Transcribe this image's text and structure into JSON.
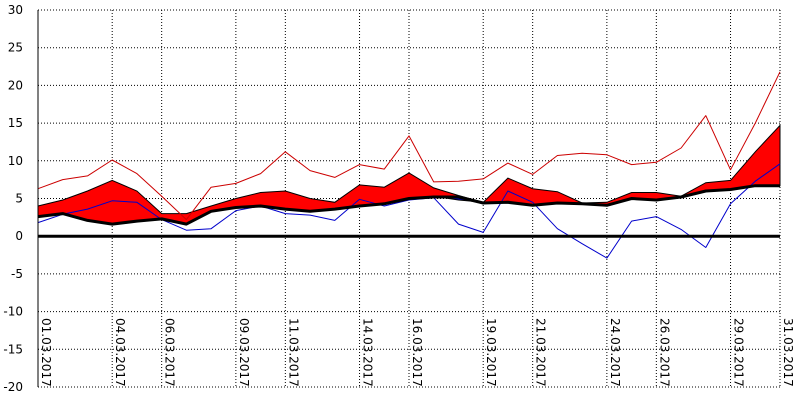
{
  "chart_data": {
    "type": "area",
    "grid": true,
    "ylim": [
      -20,
      30
    ],
    "yticks": [
      -20,
      -15,
      -10,
      -5,
      0,
      5,
      10,
      15,
      20,
      25,
      30
    ],
    "ytick_labels": [
      "-20",
      "-15",
      "-10",
      "-5",
      "0",
      "5",
      "10",
      "15",
      "20",
      "25",
      "30"
    ],
    "x_tick_days": [
      1,
      4,
      6,
      9,
      11,
      14,
      16,
      19,
      21,
      24,
      26,
      29,
      31
    ],
    "x_tick_labels": [
      "01.03.2017",
      "04.03.2017",
      "06.03.2017",
      "09.03.2017",
      "11.03.2017",
      "14.03.2017",
      "16.03.2017",
      "19.03.2017",
      "21.03.2017",
      "24.03.2017",
      "26.03.2017",
      "29.03.2017",
      "31.03.2017"
    ],
    "x_days": [
      1,
      2,
      3,
      4,
      5,
      6,
      7,
      8,
      9,
      10,
      11,
      12,
      13,
      14,
      15,
      16,
      17,
      18,
      19,
      20,
      21,
      22,
      23,
      24,
      25,
      26,
      27,
      28,
      29,
      30,
      31
    ],
    "series": [
      {
        "values": [
          6.3,
          7.5,
          8.0,
          10.1,
          8.3,
          5.3,
          2.2,
          6.5,
          7.0,
          8.3,
          11.2,
          8.7,
          7.8,
          9.5,
          8.9,
          13.3,
          7.2,
          7.3,
          7.6,
          9.7,
          8.2,
          10.7,
          11.0,
          10.8,
          9.5,
          9.8,
          11.7,
          16.0,
          8.8,
          15.0,
          21.8
        ],
        "color": "#cc0000",
        "style": "line"
      },
      {
        "values": [
          4.0,
          4.8,
          6.0,
          7.4,
          6.0,
          3.0,
          3.0,
          4.0,
          5.0,
          5.8,
          6.0,
          5.0,
          4.5,
          6.8,
          6.5,
          8.4,
          6.4,
          5.4,
          4.5,
          7.7,
          6.3,
          5.9,
          4.4,
          4.5,
          5.8,
          5.8,
          5.3,
          7.1,
          7.4,
          11.2,
          14.7
        ],
        "color": "#ff0000",
        "style": "upper-band"
      },
      {
        "values": [
          2.6,
          3.0,
          2.1,
          1.6,
          2.0,
          2.3,
          1.6,
          3.3,
          3.8,
          4.0,
          3.6,
          3.3,
          3.6,
          4.0,
          4.3,
          5.0,
          5.2,
          5.2,
          4.4,
          4.5,
          4.1,
          4.4,
          4.3,
          4.1,
          5.0,
          4.8,
          5.2,
          6.0,
          6.2,
          6.7,
          6.7
        ],
        "color": "#000000",
        "style": "thick-line"
      },
      {
        "values": [
          2.9,
          3.4,
          2.5,
          2.0,
          2.3,
          2.8,
          3.2,
          3.5,
          3.9,
          4.2,
          3.8,
          3.6,
          3.9,
          4.4,
          4.6,
          5.1,
          5.3,
          4.8,
          4.5,
          5.1,
          4.6,
          4.3,
          4.4,
          4.6,
          4.9,
          5.0,
          5.6,
          5.9,
          6.3,
          6.6,
          6.7
        ],
        "color": "#0000cc",
        "style": "lower-band"
      },
      {
        "values": [
          1.8,
          2.9,
          3.6,
          4.7,
          4.5,
          2.2,
          0.8,
          1.0,
          3.4,
          4.0,
          3.0,
          2.8,
          2.1,
          4.9,
          4.0,
          4.8,
          5.1,
          1.6,
          0.5,
          6.0,
          4.5,
          1.0,
          -1.0,
          -2.9,
          2.0,
          2.6,
          0.9,
          -1.5,
          4.3,
          7.3,
          9.6
        ],
        "color": "#0000cc",
        "style": "line"
      }
    ]
  }
}
